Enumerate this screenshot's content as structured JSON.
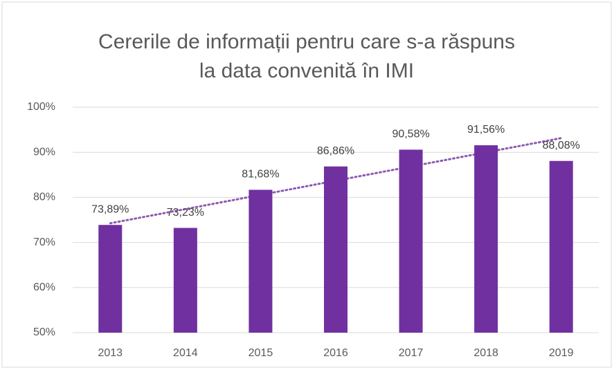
{
  "chart_data": {
    "type": "bar",
    "title": [
      "Cererile de informații pentru care s-a răspuns",
      "la data convenită în IMI"
    ],
    "categories": [
      "2013",
      "2014",
      "2015",
      "2016",
      "2017",
      "2018",
      "2019"
    ],
    "values": [
      73.89,
      73.23,
      81.68,
      86.86,
      90.58,
      91.56,
      88.08
    ],
    "value_labels": [
      "73,89%",
      "73,23%",
      "81,68%",
      "86,86%",
      "90,58%",
      "91,56%",
      "88,08%"
    ],
    "color": "#7030a0",
    "ylim": [
      50,
      100
    ],
    "yticks": [
      {
        "value": 50,
        "label": "50%"
      },
      {
        "value": 60,
        "label": "60%"
      },
      {
        "value": 70,
        "label": "70%"
      },
      {
        "value": 80,
        "label": "80%"
      },
      {
        "value": 90,
        "label": "90%"
      },
      {
        "value": 100,
        "label": "100%"
      }
    ],
    "grid": true,
    "trendline": true
  }
}
